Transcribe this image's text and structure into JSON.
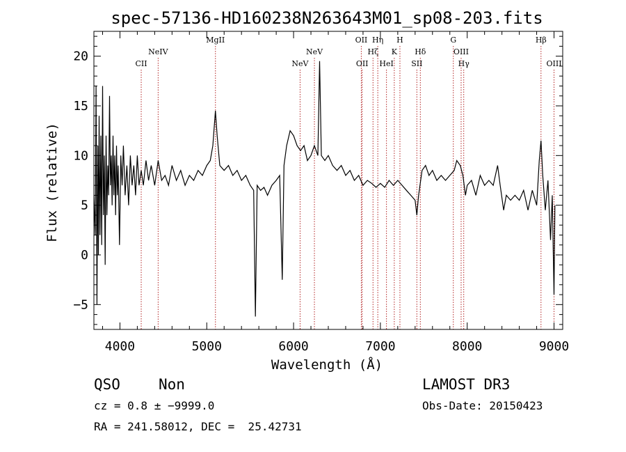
{
  "chart_data": {
    "type": "line",
    "title": "spec-57136-HD160238N263643M01_sp08-203.fits",
    "xlabel": "Wavelength (Å)",
    "ylabel": "Flux (relative)",
    "xlim": [
      3700,
      9100
    ],
    "ylim": [
      -7.5,
      22.5
    ],
    "xticks": [
      4000,
      5000,
      6000,
      7000,
      8000,
      9000
    ],
    "yticks": [
      -5,
      0,
      5,
      10,
      15,
      20
    ],
    "xtick_labels": [
      "4000",
      "5000",
      "6000",
      "7000",
      "8000",
      "9000"
    ],
    "ytick_labels": [
      "−5",
      "0",
      "5",
      "10",
      "15",
      "20"
    ],
    "grid": false,
    "line_color": "#000000",
    "marker_color": "#b22222",
    "line_markers": [
      {
        "label": "CII",
        "x": 4245,
        "label_row": "lower"
      },
      {
        "label": "NeIV",
        "x": 4440,
        "label_row": "upper"
      },
      {
        "label": "MgII",
        "x": 5100,
        "label_row": "top"
      },
      {
        "label": "NeV",
        "x": 6075,
        "label_row": "lower"
      },
      {
        "label": "NeV",
        "x": 6240,
        "label_row": "upper"
      },
      {
        "label": "OII",
        "x": 6780,
        "label_row": "top"
      },
      {
        "label": "OII",
        "x": 6790,
        "label_row": "lower"
      },
      {
        "label": "Hη",
        "x": 6970,
        "label_row": "top"
      },
      {
        "label": "Hζ",
        "x": 6915,
        "label_row": "upper"
      },
      {
        "label": "HeI",
        "x": 7070,
        "label_row": "lower"
      },
      {
        "label": "H",
        "x": 7225,
        "label_row": "top"
      },
      {
        "label": "K",
        "x": 7160,
        "label_row": "upper"
      },
      {
        "label": "Hδ",
        "x": 7460,
        "label_row": "upper"
      },
      {
        "label": "SII",
        "x": 7420,
        "label_row": "lower"
      },
      {
        "label": "G",
        "x": 7840,
        "label_row": "top"
      },
      {
        "label": "OIII",
        "x": 7930,
        "label_row": "upper"
      },
      {
        "label": "Hγ",
        "x": 7960,
        "label_row": "lower"
      },
      {
        "label": "Hβ",
        "x": 8850,
        "label_row": "top"
      },
      {
        "label": "OIII",
        "x": 9000,
        "label_row": "lower"
      }
    ],
    "series": [
      {
        "name": "flux",
        "points": [
          [
            3700,
            6
          ],
          [
            3715,
            2
          ],
          [
            3725,
            17
          ],
          [
            3735,
            -5
          ],
          [
            3745,
            11
          ],
          [
            3752,
            0
          ],
          [
            3760,
            14
          ],
          [
            3770,
            2
          ],
          [
            3780,
            12
          ],
          [
            3790,
            1
          ],
          [
            3800,
            17
          ],
          [
            3810,
            4
          ],
          [
            3820,
            10
          ],
          [
            3830,
            -1
          ],
          [
            3840,
            12
          ],
          [
            3850,
            4
          ],
          [
            3860,
            9
          ],
          [
            3870,
            6
          ],
          [
            3880,
            16
          ],
          [
            3890,
            7
          ],
          [
            3900,
            10
          ],
          [
            3910,
            5
          ],
          [
            3920,
            12
          ],
          [
            3930,
            6
          ],
          [
            3940,
            10
          ],
          [
            3950,
            4
          ],
          [
            3960,
            11
          ],
          [
            3970,
            6
          ],
          [
            3980,
            9
          ],
          [
            3995,
            1
          ],
          [
            4010,
            10
          ],
          [
            4025,
            7
          ],
          [
            4040,
            11
          ],
          [
            4060,
            6
          ],
          [
            4080,
            9
          ],
          [
            4100,
            5
          ],
          [
            4120,
            10
          ],
          [
            4140,
            7
          ],
          [
            4160,
            9
          ],
          [
            4180,
            6
          ],
          [
            4200,
            10
          ],
          [
            4220,
            7
          ],
          [
            4245,
            8.5
          ],
          [
            4270,
            7
          ],
          [
            4300,
            9.5
          ],
          [
            4330,
            7.5
          ],
          [
            4360,
            9
          ],
          [
            4400,
            7
          ],
          [
            4440,
            9.5
          ],
          [
            4480,
            7.5
          ],
          [
            4520,
            8
          ],
          [
            4560,
            7
          ],
          [
            4600,
            9
          ],
          [
            4650,
            7.5
          ],
          [
            4700,
            8.5
          ],
          [
            4750,
            7
          ],
          [
            4800,
            8
          ],
          [
            4850,
            7.5
          ],
          [
            4900,
            8.5
          ],
          [
            4950,
            8
          ],
          [
            5000,
            9
          ],
          [
            5040,
            9.5
          ],
          [
            5070,
            11
          ],
          [
            5100,
            14.5
          ],
          [
            5120,
            12
          ],
          [
            5150,
            9
          ],
          [
            5200,
            8.5
          ],
          [
            5250,
            9
          ],
          [
            5300,
            8
          ],
          [
            5350,
            8.5
          ],
          [
            5400,
            7.5
          ],
          [
            5450,
            8
          ],
          [
            5500,
            7
          ],
          [
            5540,
            6.5
          ],
          [
            5560,
            -6.2
          ],
          [
            5580,
            7
          ],
          [
            5620,
            6.5
          ],
          [
            5660,
            6.8
          ],
          [
            5700,
            6
          ],
          [
            5750,
            7
          ],
          [
            5800,
            7.5
          ],
          [
            5840,
            8
          ],
          [
            5870,
            -2.5
          ],
          [
            5890,
            9
          ],
          [
            5920,
            11
          ],
          [
            5960,
            12.5
          ],
          [
            6000,
            12
          ],
          [
            6040,
            11
          ],
          [
            6080,
            10.5
          ],
          [
            6120,
            11
          ],
          [
            6160,
            9.5
          ],
          [
            6200,
            10
          ],
          [
            6240,
            11
          ],
          [
            6280,
            10
          ],
          [
            6300,
            19.5
          ],
          [
            6320,
            10
          ],
          [
            6360,
            9.5
          ],
          [
            6400,
            10
          ],
          [
            6450,
            9
          ],
          [
            6500,
            8.5
          ],
          [
            6550,
            9
          ],
          [
            6600,
            8
          ],
          [
            6650,
            8.5
          ],
          [
            6700,
            7.5
          ],
          [
            6750,
            8
          ],
          [
            6800,
            7
          ],
          [
            6850,
            7.5
          ],
          [
            6900,
            7.2
          ],
          [
            6950,
            6.8
          ],
          [
            7000,
            7.2
          ],
          [
            7050,
            6.8
          ],
          [
            7100,
            7.5
          ],
          [
            7150,
            7
          ],
          [
            7200,
            7.5
          ],
          [
            7250,
            7
          ],
          [
            7300,
            6.5
          ],
          [
            7350,
            6
          ],
          [
            7400,
            5.5
          ],
          [
            7420,
            4
          ],
          [
            7440,
            6
          ],
          [
            7480,
            8.5
          ],
          [
            7520,
            9
          ],
          [
            7560,
            8
          ],
          [
            7600,
            8.5
          ],
          [
            7650,
            7.5
          ],
          [
            7700,
            8
          ],
          [
            7750,
            7.5
          ],
          [
            7800,
            8
          ],
          [
            7850,
            8.5
          ],
          [
            7880,
            9.5
          ],
          [
            7920,
            9
          ],
          [
            7950,
            8
          ],
          [
            7980,
            6
          ],
          [
            8000,
            7
          ],
          [
            8050,
            7.5
          ],
          [
            8100,
            6
          ],
          [
            8150,
            8
          ],
          [
            8200,
            7
          ],
          [
            8250,
            7.5
          ],
          [
            8300,
            7
          ],
          [
            8350,
            9
          ],
          [
            8380,
            7
          ],
          [
            8420,
            4.5
          ],
          [
            8450,
            6
          ],
          [
            8500,
            5.5
          ],
          [
            8550,
            6
          ],
          [
            8600,
            5.5
          ],
          [
            8650,
            6.5
          ],
          [
            8700,
            4.5
          ],
          [
            8750,
            6.5
          ],
          [
            8800,
            5
          ],
          [
            8830,
            9.5
          ],
          [
            8850,
            11.5
          ],
          [
            8870,
            8
          ],
          [
            8900,
            4.5
          ],
          [
            8930,
            7.5
          ],
          [
            8960,
            1.5
          ],
          [
            8980,
            6
          ],
          [
            9000,
            -4
          ],
          [
            9010,
            5
          ]
        ]
      }
    ]
  },
  "footer": {
    "class_label": "QSO",
    "subclass_label": "Non",
    "survey": "LAMOST DR3",
    "cz_line": "cz = 0.8 ± −9999.0",
    "obs_date": "Obs-Date: 20150423",
    "coords_line": "RA = 241.58012, DEC =  25.42731"
  }
}
